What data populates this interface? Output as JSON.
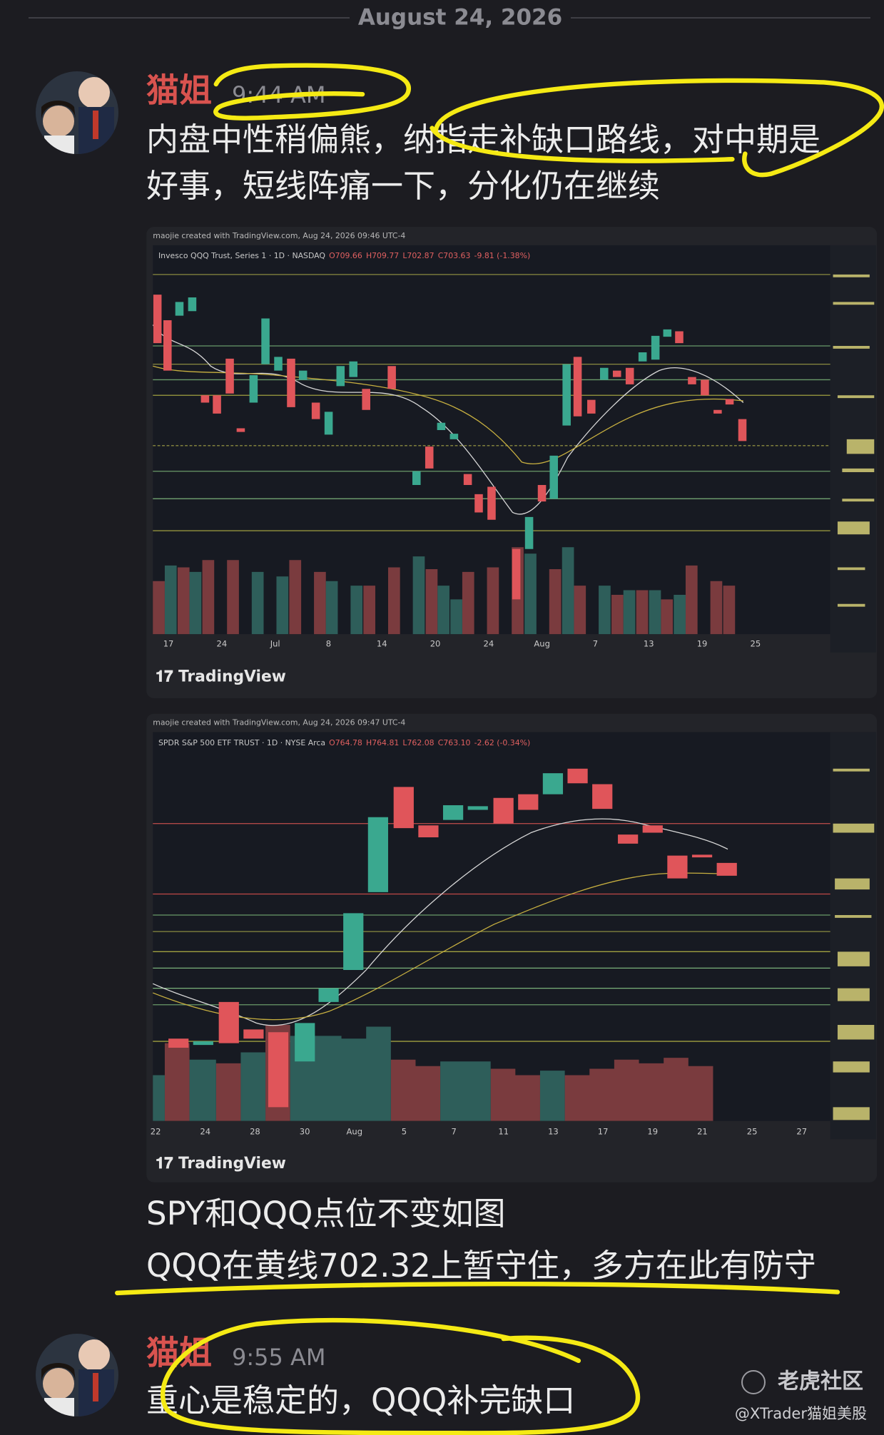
{
  "date_divider": "August 24, 2026",
  "messages": [
    {
      "author": "猫姐",
      "time": "9:44 AM",
      "lines": [
        "内盘中性稍偏熊，纳指走补缺口路线，对中期是",
        "好事，短线阵痛一下，分化仍在继续"
      ],
      "charts": [
        {
          "credit": "maojie created with TradingView.com, Aug 24, 2026 09:46 UTC-4",
          "symbol": "Invesco QQQ Trust, Series 1 · 1D · NASDAQ",
          "ohlc": [
            "O709.66",
            "H709.77",
            "L702.87",
            "C703.63",
            "-9.81 (-1.38%)"
          ],
          "x_labels": [
            "17",
            "24",
            "Jul",
            "8",
            "14",
            "20",
            "24",
            "Aug",
            "7",
            "13",
            "19",
            "25"
          ],
          "brand": "TradingView"
        },
        {
          "credit": "maojie created with TradingView.com, Aug 24, 2026 09:47 UTC-4",
          "symbol": "SPDR S&P 500 ETF TRUST · 1D · NYSE Arca",
          "ohlc": [
            "O764.78",
            "H764.81",
            "L762.08",
            "C763.10",
            "-2.62 (-0.34%)"
          ],
          "x_labels": [
            "22",
            "24",
            "28",
            "30",
            "Aug",
            "5",
            "7",
            "11",
            "13",
            "17",
            "19",
            "21",
            "25",
            "27"
          ],
          "brand": "TradingView"
        }
      ],
      "more_lines": [
        "SPY和QQQ点位不变如图",
        "QQQ在黄线702.32上暂守住，多方在此有防守"
      ]
    },
    {
      "author": "猫姐",
      "time": "9:55 AM",
      "lines": [
        "重心是稳定的，QQQ补完缺口"
      ]
    }
  ],
  "watermark": {
    "logo": "老虎社区",
    "handle": "@XTrader猫姐美股"
  }
}
